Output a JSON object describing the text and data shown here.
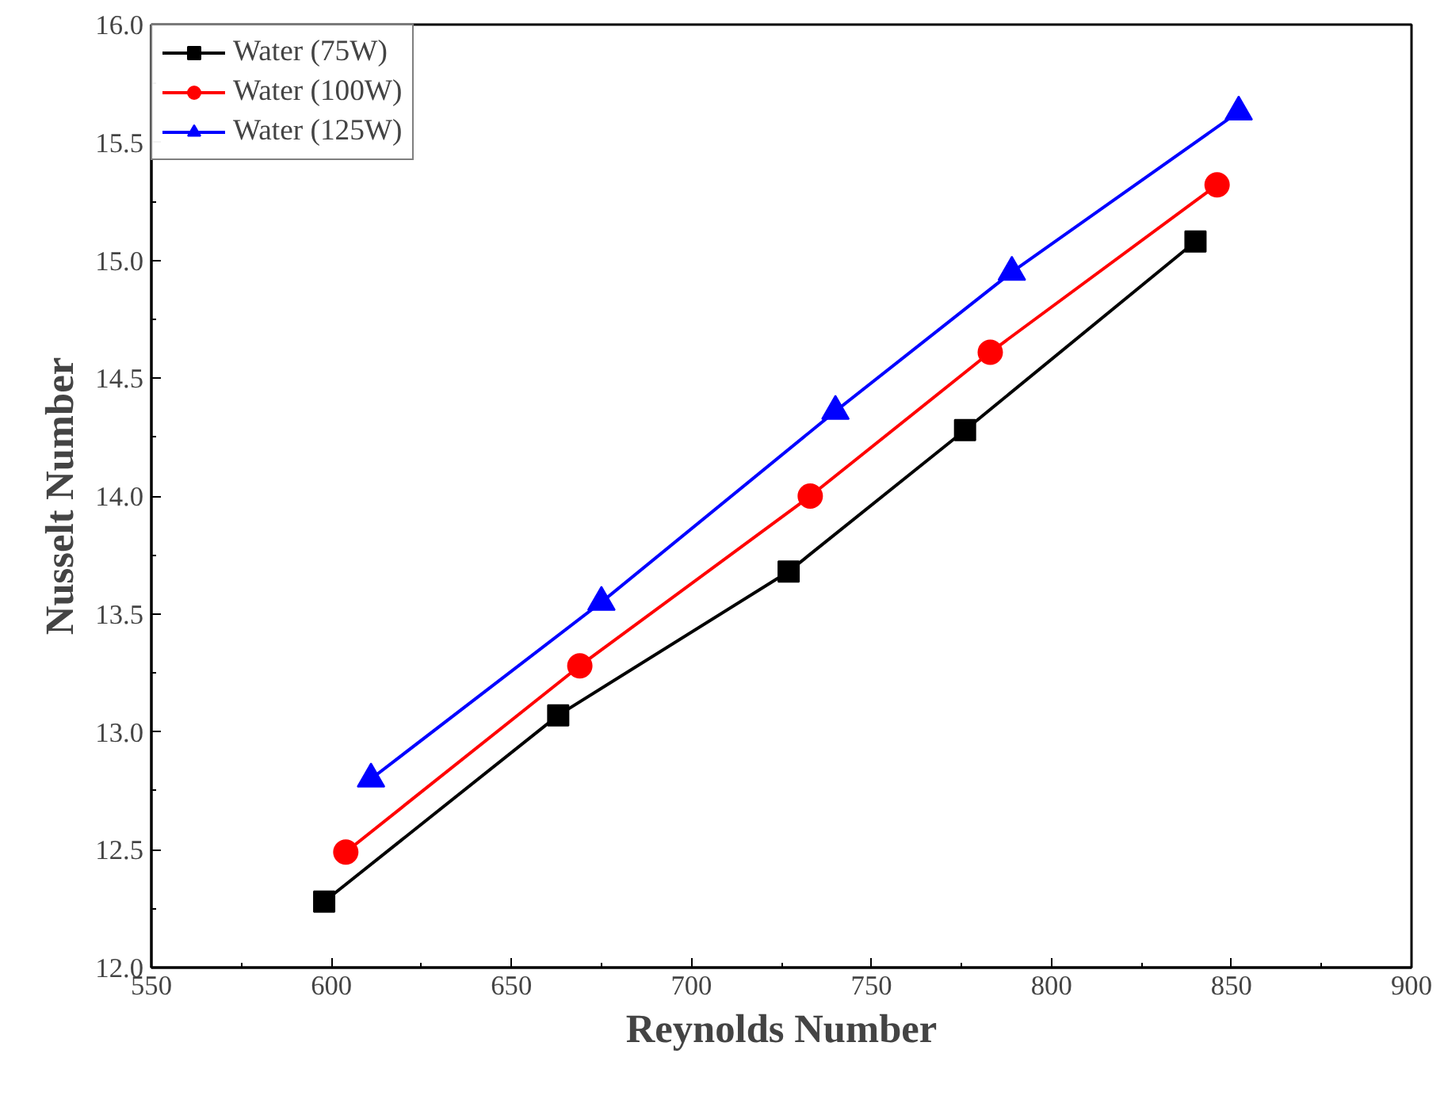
{
  "chart_data": {
    "type": "line",
    "xlabel": "Reynolds Number",
    "ylabel": "Nusselt Number",
    "xlim": [
      550,
      900
    ],
    "ylim": [
      12.0,
      16.0
    ],
    "xticks": [
      550,
      600,
      650,
      700,
      750,
      800,
      850,
      900
    ],
    "yticks": [
      {
        "value": 12,
        "label": "12.0"
      },
      {
        "value": 12.5,
        "label": "12.5"
      },
      {
        "value": 13,
        "label": "13.0"
      },
      {
        "value": 13.5,
        "label": "13.5"
      },
      {
        "value": 14,
        "label": "14.0"
      },
      {
        "value": 14.5,
        "label": "14.5"
      },
      {
        "value": 15,
        "label": "15.0"
      },
      {
        "value": 15.5,
        "label": "15.5"
      },
      {
        "value": 16,
        "label": "16.0"
      }
    ],
    "grid": false,
    "legend": "top left",
    "line_style": "solid",
    "series": [
      {
        "name": "Water (75W)",
        "color": "#000000",
        "marker": "square",
        "x": [
          598,
          663,
          727,
          776,
          840
        ],
        "values": [
          12.28,
          13.07,
          13.68,
          14.28,
          15.08
        ]
      },
      {
        "name": "Water (100W)",
        "color": "#ff0000",
        "marker": "circle",
        "x": [
          604,
          669,
          733,
          783,
          846
        ],
        "values": [
          12.49,
          13.28,
          14.0,
          14.61,
          15.32
        ]
      },
      {
        "name": "Water (125W)",
        "color": "#0000ff",
        "marker": "triangle",
        "x": [
          611,
          675,
          740,
          789,
          852
        ],
        "values": [
          12.8,
          13.55,
          14.36,
          14.95,
          15.63
        ]
      }
    ]
  }
}
